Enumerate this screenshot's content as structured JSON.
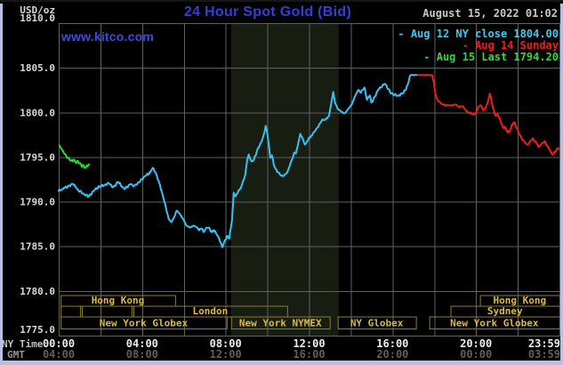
{
  "header": {
    "title": "24 Hour Spot Gold (Bid)",
    "watermark": "www.kitco.com",
    "datetime": "August 15, 2022 01:02"
  },
  "legend": [
    {
      "label": "- Aug 12 NY close 1804.00",
      "color": "#3fc8f4"
    },
    {
      "label": "- Aug 14 Sunday",
      "color": "#f01c1c"
    },
    {
      "label": "- Aug 15 Last 1794.20",
      "color": "#2ddb2d"
    }
  ],
  "y_axis": {
    "unit": "USD/oz",
    "ticks": [
      "1810.0",
      "1805.0",
      "1800.0",
      "1795.0",
      "1790.0",
      "1785.0",
      "1780.0",
      "1775.0"
    ]
  },
  "x_axis": {
    "ny_label": "NY Time",
    "gmt_label": "GMT",
    "tick_hours": [
      0,
      4,
      8,
      12,
      16,
      20,
      24
    ],
    "ny_ticks": [
      "00:00",
      "04:00",
      "08:00",
      "12:00",
      "16:00",
      "20:00",
      "23:59"
    ],
    "gmt_ticks": [
      "04:00",
      "08:00",
      "12:00",
      "16:00",
      "20:00",
      "00:00",
      "03:59"
    ]
  },
  "sessions": [
    {
      "row": 0,
      "label": "Hong Kong",
      "start_h": 0.09,
      "end_h": 5.58
    },
    {
      "row": 0,
      "label": "Hong Kong",
      "start_h": 20.19,
      "end_h": 24.0
    },
    {
      "row": 1,
      "label": "",
      "start_h": 0.09,
      "end_h": 1.02
    },
    {
      "row": 1,
      "label": "",
      "start_h": 1.11,
      "end_h": 3.49
    },
    {
      "row": 1,
      "label": "London",
      "start_h": 3.58,
      "end_h": 10.95
    },
    {
      "row": 1,
      "label": "Sydney",
      "start_h": 18.78,
      "end_h": 24.0
    },
    {
      "row": 2,
      "label": "New York Globex",
      "start_h": 0.09,
      "end_h": 8.05
    },
    {
      "row": 2,
      "label": "New York NYMEX",
      "start_h": 8.26,
      "end_h": 12.99
    },
    {
      "row": 2,
      "label": "NY Globex",
      "start_h": 13.37,
      "end_h": 17.12
    },
    {
      "row": 2,
      "label": "New York Globex",
      "start_h": 17.76,
      "end_h": 24.0
    }
  ],
  "colors": {
    "background": "#000000",
    "grid": "#616161",
    "band": "#171d11",
    "frame_edge": "#b9c0e4",
    "title": "#3240d8",
    "watermark": "#3a4ce4",
    "datetime": "#c8c8c8",
    "y_label": "#d8d8d8",
    "ny_tick": "#ececec",
    "ny_label": "#c0c0c0",
    "gmt_tick": "#5e5e5e",
    "gmt_label": "#969696",
    "session_border": "#8f7d26",
    "session_text": "#dcbb3e"
  },
  "chart_data": {
    "type": "line",
    "title": "24 Hour Spot Gold (Bid)",
    "xlabel": "NY time (hours, 00:00 - 23:59)",
    "ylabel": "USD/oz",
    "ylim": [
      1775,
      1810
    ],
    "xlim_hours": [
      0,
      24
    ],
    "grid": true,
    "legend_position": "top-right",
    "highlight_band_hours": [
      8.26,
      13.42
    ],
    "series": [
      {
        "id": "aug12",
        "name": "Aug 12 (Friday, NY close 1804.00)",
        "color": "#38c2f2",
        "points": [
          [
            0.0,
            1791.2
          ],
          [
            0.26,
            1791.5
          ],
          [
            0.51,
            1791.8
          ],
          [
            0.68,
            1792.0
          ],
          [
            0.94,
            1791.3
          ],
          [
            1.24,
            1790.8
          ],
          [
            1.45,
            1790.6
          ],
          [
            1.75,
            1791.4
          ],
          [
            1.96,
            1791.7
          ],
          [
            2.21,
            1791.9
          ],
          [
            2.39,
            1792.1
          ],
          [
            2.6,
            1791.6
          ],
          [
            2.85,
            1792.2
          ],
          [
            3.15,
            1791.4
          ],
          [
            3.45,
            1792.0
          ],
          [
            3.58,
            1791.7
          ],
          [
            3.79,
            1792.1
          ],
          [
            4.0,
            1792.5
          ],
          [
            4.17,
            1792.9
          ],
          [
            4.39,
            1793.3
          ],
          [
            4.51,
            1793.8
          ],
          [
            4.64,
            1793.3
          ],
          [
            4.81,
            1792.2
          ],
          [
            4.98,
            1790.8
          ],
          [
            5.15,
            1789.2
          ],
          [
            5.28,
            1788.0
          ],
          [
            5.41,
            1787.7
          ],
          [
            5.54,
            1788.3
          ],
          [
            5.66,
            1789.0
          ],
          [
            5.79,
            1788.7
          ],
          [
            5.96,
            1788.1
          ],
          [
            6.13,
            1787.3
          ],
          [
            6.3,
            1787.1
          ],
          [
            6.47,
            1787.3
          ],
          [
            6.64,
            1787.1
          ],
          [
            6.73,
            1786.8
          ],
          [
            6.86,
            1787.0
          ],
          [
            6.94,
            1786.6
          ],
          [
            7.07,
            1787.1
          ],
          [
            7.2,
            1787.1
          ],
          [
            7.33,
            1786.6
          ],
          [
            7.45,
            1786.8
          ],
          [
            7.58,
            1786.3
          ],
          [
            7.71,
            1785.7
          ],
          [
            7.84,
            1784.9
          ],
          [
            7.92,
            1785.4
          ],
          [
            8.05,
            1786.1
          ],
          [
            8.18,
            1785.9
          ],
          [
            8.31,
            1788.0
          ],
          [
            8.39,
            1791.0
          ],
          [
            8.48,
            1790.6
          ],
          [
            8.6,
            1791.1
          ],
          [
            8.73,
            1791.5
          ],
          [
            8.82,
            1792.2
          ],
          [
            8.94,
            1793.0
          ],
          [
            9.03,
            1794.6
          ],
          [
            9.11,
            1795.3
          ],
          [
            9.24,
            1794.5
          ],
          [
            9.37,
            1794.8
          ],
          [
            9.5,
            1795.7
          ],
          [
            9.63,
            1796.3
          ],
          [
            9.75,
            1796.9
          ],
          [
            9.84,
            1797.6
          ],
          [
            9.92,
            1798.5
          ],
          [
            10.01,
            1797.5
          ],
          [
            10.09,
            1796.0
          ],
          [
            10.14,
            1794.9
          ],
          [
            10.22,
            1795.2
          ],
          [
            10.31,
            1794.1
          ],
          [
            10.39,
            1793.7
          ],
          [
            10.52,
            1793.3
          ],
          [
            10.69,
            1792.9
          ],
          [
            10.82,
            1793.0
          ],
          [
            10.95,
            1793.3
          ],
          [
            11.07,
            1794.0
          ],
          [
            11.2,
            1794.8
          ],
          [
            11.29,
            1795.5
          ],
          [
            11.37,
            1795.4
          ],
          [
            11.46,
            1796.3
          ],
          [
            11.58,
            1797.6
          ],
          [
            11.67,
            1797.2
          ],
          [
            11.8,
            1796.4
          ],
          [
            11.92,
            1796.8
          ],
          [
            12.1,
            1797.4
          ],
          [
            12.27,
            1797.9
          ],
          [
            12.44,
            1798.4
          ],
          [
            12.61,
            1799.1
          ],
          [
            12.78,
            1799.2
          ],
          [
            12.95,
            1799.6
          ],
          [
            13.03,
            1800.6
          ],
          [
            13.16,
            1802.3
          ],
          [
            13.24,
            1801.1
          ],
          [
            13.37,
            1800.4
          ],
          [
            13.54,
            1800.1
          ],
          [
            13.71,
            1799.9
          ],
          [
            13.88,
            1800.4
          ],
          [
            14.05,
            1800.9
          ],
          [
            14.22,
            1801.9
          ],
          [
            14.35,
            1802.5
          ],
          [
            14.48,
            1802.2
          ],
          [
            14.65,
            1802.8
          ],
          [
            14.78,
            1801.4
          ],
          [
            14.91,
            1801.9
          ],
          [
            14.99,
            1801.1
          ],
          [
            15.16,
            1801.8
          ],
          [
            15.33,
            1802.6
          ],
          [
            15.5,
            1802.9
          ],
          [
            15.63,
            1803.2
          ],
          [
            15.8,
            1802.6
          ],
          [
            15.93,
            1802.1
          ],
          [
            16.1,
            1802.0
          ],
          [
            16.27,
            1801.9
          ],
          [
            16.48,
            1802.1
          ],
          [
            16.65,
            1802.6
          ],
          [
            16.74,
            1803.2
          ],
          [
            16.82,
            1804.0
          ],
          [
            16.87,
            1804.2
          ],
          [
            17.21,
            1804.2
          ]
        ]
      },
      {
        "id": "aug14",
        "name": "Aug 14 Sunday",
        "color": "#f01c1c",
        "points": [
          [
            17.21,
            1804.2
          ],
          [
            17.89,
            1804.2
          ],
          [
            17.98,
            1803.4
          ],
          [
            18.06,
            1802.0
          ],
          [
            18.15,
            1801.4
          ],
          [
            18.27,
            1801.1
          ],
          [
            18.4,
            1800.9
          ],
          [
            18.61,
            1800.8
          ],
          [
            18.83,
            1800.8
          ],
          [
            19.04,
            1800.9
          ],
          [
            19.17,
            1800.6
          ],
          [
            19.34,
            1800.7
          ],
          [
            19.46,
            1800.4
          ],
          [
            19.59,
            1800.1
          ],
          [
            19.81,
            1799.8
          ],
          [
            19.98,
            1799.9
          ],
          [
            20.1,
            1800.6
          ],
          [
            20.23,
            1800.8
          ],
          [
            20.36,
            1800.2
          ],
          [
            20.44,
            1800.4
          ],
          [
            20.57,
            1801.2
          ],
          [
            20.66,
            1802.1
          ],
          [
            20.74,
            1801.3
          ],
          [
            20.83,
            1800.4
          ],
          [
            20.95,
            1799.6
          ],
          [
            21.04,
            1799.8
          ],
          [
            21.17,
            1799.1
          ],
          [
            21.3,
            1798.3
          ],
          [
            21.38,
            1798.4
          ],
          [
            21.47,
            1797.9
          ],
          [
            21.59,
            1797.8
          ],
          [
            21.68,
            1798.3
          ],
          [
            21.81,
            1798.9
          ],
          [
            21.89,
            1798.6
          ],
          [
            22.02,
            1797.9
          ],
          [
            22.15,
            1797.3
          ],
          [
            22.23,
            1796.9
          ],
          [
            22.36,
            1796.6
          ],
          [
            22.45,
            1796.4
          ],
          [
            22.57,
            1796.7
          ],
          [
            22.66,
            1796.9
          ],
          [
            22.74,
            1797.1
          ],
          [
            22.83,
            1796.7
          ],
          [
            22.96,
            1796.4
          ],
          [
            23.0,
            1796.1
          ],
          [
            23.08,
            1796.3
          ],
          [
            23.21,
            1796.6
          ],
          [
            23.3,
            1796.8
          ],
          [
            23.38,
            1796.3
          ],
          [
            23.51,
            1795.9
          ],
          [
            23.6,
            1795.6
          ],
          [
            23.64,
            1795.3
          ],
          [
            23.72,
            1795.4
          ],
          [
            23.85,
            1795.8
          ],
          [
            23.98,
            1796.0
          ]
        ]
      },
      {
        "id": "aug15",
        "name": "Aug 15 (Last 1794.20)",
        "color": "#2ddb2d",
        "points": [
          [
            0.04,
            1796.3
          ],
          [
            0.17,
            1795.8
          ],
          [
            0.26,
            1795.4
          ],
          [
            0.38,
            1795.0
          ],
          [
            0.51,
            1794.8
          ],
          [
            0.6,
            1794.6
          ],
          [
            0.72,
            1794.7
          ],
          [
            0.81,
            1794.4
          ],
          [
            0.94,
            1794.5
          ],
          [
            1.02,
            1794.3
          ],
          [
            1.11,
            1793.9
          ],
          [
            1.15,
            1794.1
          ],
          [
            1.24,
            1793.8
          ],
          [
            1.32,
            1793.9
          ],
          [
            1.45,
            1794.2
          ]
        ]
      }
    ]
  }
}
